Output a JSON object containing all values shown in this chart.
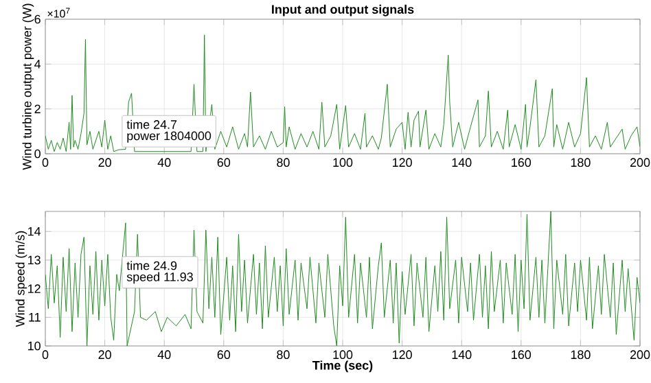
{
  "chart_data": [
    {
      "type": "line",
      "title": "Input and output signals",
      "ylabel": "Wind turbine output power (W)",
      "color": "#1e8c1e",
      "grid": true,
      "marker": "none",
      "line_style": "solid",
      "xlim": [
        0,
        200
      ],
      "xticks": [
        0,
        20,
        40,
        60,
        80,
        100,
        120,
        140,
        160,
        180,
        200
      ],
      "ylim": [
        0,
        6
      ],
      "yticks": [
        0,
        2,
        4,
        6
      ],
      "annotations": [
        "×10$^{7}$",
        "time 24.7",
        "power 1804000"
      ],
      "x": [
        0,
        1,
        2,
        3,
        4,
        5,
        6,
        7,
        8,
        8.5,
        9,
        9.5,
        10,
        11,
        12,
        13,
        13.5,
        14,
        15,
        16,
        18,
        19,
        20,
        21,
        22,
        23,
        24.7,
        27,
        28,
        29,
        30,
        34,
        38,
        42,
        46,
        49,
        50,
        51,
        53,
        53.5,
        54,
        56,
        57,
        59,
        61,
        63,
        65,
        67,
        68,
        69,
        70,
        72,
        74,
        76,
        78,
        80,
        80.5,
        81,
        82,
        84,
        86,
        88,
        90,
        92,
        93,
        94,
        96,
        98,
        99,
        101,
        102,
        104,
        106,
        107.5,
        108,
        110,
        112,
        113,
        115,
        116,
        118,
        120,
        121,
        122,
        123,
        124,
        125.5,
        126,
        128,
        129,
        131,
        133,
        134,
        135.5,
        136,
        137,
        139,
        141,
        143,
        145.5,
        146,
        148,
        149,
        150,
        152,
        154,
        155.5,
        156,
        158,
        160,
        161.5,
        162,
        163,
        165,
        166,
        168,
        170.5,
        171,
        172,
        174,
        176,
        178,
        180,
        182,
        183,
        185,
        187,
        189,
        190,
        192,
        194,
        195,
        197,
        199,
        200
      ],
      "values": [
        0.8,
        0.2,
        0.6,
        0.1,
        0.5,
        0.2,
        0.7,
        0.1,
        1.4,
        0.2,
        2.6,
        0.3,
        0.6,
        0.2,
        0.9,
        1.8,
        5.1,
        0.4,
        1.0,
        0.2,
        1.0,
        0.3,
        1.5,
        0.2,
        0.8,
        0.1,
        0.18,
        0.2,
        2.3,
        2.7,
        0.1,
        0.1,
        0.1,
        0.1,
        0.1,
        0.1,
        3.1,
        0.1,
        0.1,
        5.3,
        0.1,
        2.2,
        0.2,
        1.0,
        0.3,
        1.2,
        0.2,
        0.9,
        0.3,
        2.75,
        0.3,
        0.8,
        0.2,
        1.0,
        0.3,
        0.5,
        2.1,
        0.3,
        1.2,
        0.2,
        0.9,
        0.3,
        1.0,
        0.2,
        2.3,
        0.3,
        0.8,
        2.2,
        0.2,
        2.15,
        0.3,
        0.9,
        0.2,
        1.8,
        0.3,
        0.8,
        0.2,
        0.7,
        3.1,
        0.3,
        1.1,
        1.4,
        0.2,
        1.85,
        0.3,
        1.5,
        1.9,
        0.3,
        1.95,
        0.2,
        0.9,
        0.3,
        1.3,
        4.4,
        2.3,
        0.3,
        1.4,
        0.2,
        1.2,
        2.4,
        0.3,
        0.8,
        2.8,
        0.3,
        1.0,
        0.2,
        1.95,
        0.3,
        1.3,
        0.2,
        2.2,
        0.3,
        1.2,
        3.3,
        0.3,
        0.8,
        2.9,
        0.3,
        1.3,
        0.2,
        1.4,
        0.3,
        0.9,
        3.4,
        0.3,
        0.8,
        0.2,
        1.4,
        0.3,
        0.7,
        1.1,
        0.2,
        0.8,
        1.2,
        0.3
      ]
    },
    {
      "type": "line",
      "xlabel": "Time (sec)",
      "ylabel": "Wind speed (m/s)",
      "color": "#1e8c1e",
      "grid": true,
      "marker": "none",
      "line_style": "solid",
      "xlim": [
        0,
        200
      ],
      "xticks": [
        0,
        20,
        40,
        60,
        80,
        100,
        120,
        140,
        160,
        180,
        200
      ],
      "ylim": [
        10,
        14.7
      ],
      "yticks": [
        10,
        11,
        12,
        13,
        14
      ],
      "annotations": [
        "time 24.9",
        "speed 11.93"
      ],
      "x": [
        0,
        1,
        2,
        3,
        4,
        5,
        6,
        7,
        8,
        9,
        10,
        11,
        12,
        13,
        14,
        15,
        16,
        17,
        18,
        19,
        20,
        21,
        22,
        23,
        24,
        24.9,
        27,
        27.5,
        30,
        31,
        32,
        34,
        37,
        39,
        41,
        44,
        47,
        49,
        50,
        51,
        53,
        54,
        55,
        56,
        57,
        58,
        59,
        61,
        62,
        63,
        64,
        65,
        66,
        67,
        68,
        70,
        71,
        72,
        73,
        74,
        75,
        77,
        78,
        79,
        80,
        81,
        82,
        84,
        85,
        86,
        88,
        89,
        91,
        92,
        94,
        95,
        97,
        98,
        99,
        100,
        101,
        102,
        104,
        105,
        106,
        108,
        109,
        110,
        112,
        113,
        114,
        116,
        117,
        118,
        119,
        120,
        121,
        123,
        124,
        125,
        127,
        128,
        129,
        131,
        132,
        133,
        134,
        135,
        136,
        138,
        139,
        140,
        142,
        143,
        144,
        146,
        147,
        148,
        149,
        150,
        151,
        153,
        154,
        155,
        157,
        158,
        159,
        160,
        161,
        162,
        163,
        165,
        166,
        167,
        168,
        169,
        170,
        171,
        172,
        174,
        175,
        176,
        178,
        179,
        180,
        182,
        183,
        184,
        186,
        187,
        188,
        190,
        191,
        192,
        194,
        195,
        196,
        198,
        199,
        200
      ],
      "values": [
        12.5,
        11.3,
        13.2,
        11.5,
        12.8,
        10.3,
        13.1,
        11.2,
        13.4,
        10.5,
        12.9,
        11.0,
        13.2,
        13.8,
        10.0,
        12.8,
        11.1,
        13.3,
        10.9,
        13.0,
        11.4,
        13.2,
        11.0,
        10.2,
        12.5,
        11.93,
        14.3,
        10.0,
        11.2,
        13.9,
        11.0,
        10.9,
        11.2,
        10.5,
        11.0,
        10.7,
        11.1,
        10.6,
        14.05,
        11.2,
        10.8,
        14.05,
        11.3,
        13.1,
        11.0,
        13.8,
        10.4,
        13.1,
        10.9,
        12.8,
        10.5,
        13.9,
        11.2,
        13.0,
        10.8,
        13.2,
        11.1,
        12.9,
        10.6,
        13.5,
        11.0,
        13.1,
        11.2,
        12.8,
        10.7,
        13.4,
        11.1,
        13.0,
        10.9,
        12.9,
        11.3,
        13.1,
        10.8,
        12.9,
        11.0,
        13.2,
        10.7,
        10.0,
        12.8,
        11.4,
        14.5,
        11.0,
        13.2,
        10.8,
        12.9,
        11.0,
        13.1,
        10.6,
        12.8,
        13.6,
        11.0,
        13.0,
        10.8,
        12.9,
        10.1,
        12.6,
        11.1,
        13.2,
        10.7,
        12.9,
        11.0,
        13.1,
        10.5,
        12.8,
        11.2,
        13.3,
        10.9,
        14.5,
        11.3,
        13.0,
        10.8,
        13.1,
        11.2,
        12.9,
        10.9,
        13.2,
        11.0,
        12.8,
        10.6,
        13.3,
        11.2,
        13.0,
        10.8,
        12.9,
        11.1,
        13.2,
        10.5,
        13.0,
        11.3,
        14.6,
        10.9,
        13.1,
        11.0,
        13.0,
        10.8,
        12.7,
        14.7,
        10.6,
        13.0,
        11.1,
        13.2,
        10.7,
        12.9,
        11.2,
        13.0,
        10.9,
        13.1,
        10.6,
        12.8,
        11.1,
        13.2,
        11.0,
        12.9,
        10.4,
        13.0,
        11.2,
        12.7,
        10.2,
        12.4,
        11.5
      ]
    }
  ]
}
